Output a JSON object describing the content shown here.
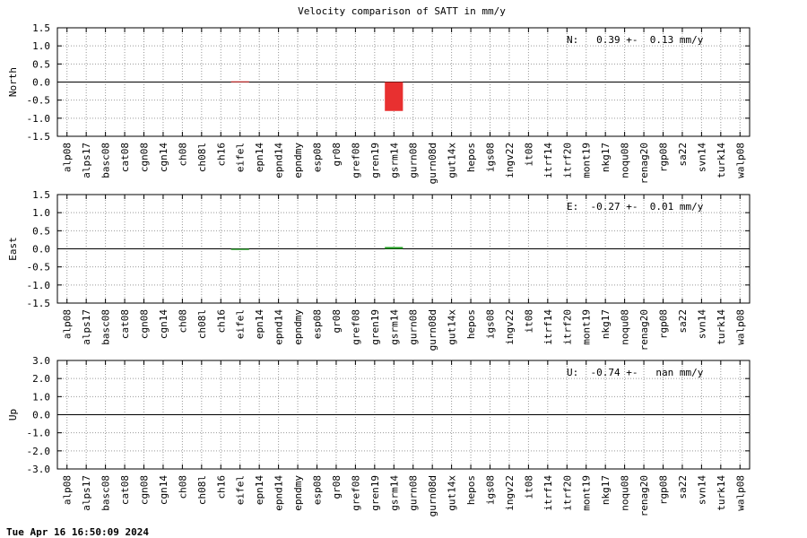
{
  "title": "Velocity comparison of SATT in mm/y",
  "timestamp": "Tue Apr 16 16:50:09 2024",
  "chart_data": [
    {
      "type": "bar",
      "ylabel": "North",
      "annotation": "N:   0.39 +-  0.13 mm/y",
      "color": "#e83030",
      "grid": true,
      "categories": [
        "alp08",
        "alps17",
        "basc08",
        "cat08",
        "cgn08",
        "cgn14",
        "ch08",
        "ch08l",
        "ch16",
        "eifel",
        "epn14",
        "epnd14",
        "epndmy",
        "esp08",
        "gr08",
        "gref08",
        "gren19",
        "gsrm14",
        "gurn08",
        "gurn08d",
        "gut14x",
        "hepos",
        "igs08",
        "ingv22",
        "it08",
        "itrf14",
        "itrf20",
        "mont19",
        "nkg17",
        "noqu08",
        "renag20",
        "rgp08",
        "sa22",
        "svn14",
        "turk14",
        "walp08"
      ],
      "values": [
        null,
        null,
        null,
        null,
        null,
        null,
        null,
        null,
        null,
        0.02,
        null,
        null,
        null,
        null,
        null,
        null,
        null,
        -0.8,
        null,
        null,
        null,
        null,
        null,
        null,
        null,
        null,
        null,
        null,
        null,
        null,
        null,
        null,
        null,
        null,
        null,
        null
      ],
      "ylim": [
        -1.5,
        1.5
      ],
      "yticks": [
        -1.5,
        {
          "value": -1,
          "label": "-1.0"
        },
        -0.5,
        {
          "value": 0,
          "label": "0.0"
        },
        0.5,
        {
          "value": 1,
          "label": "1.0"
        },
        1.5
      ]
    },
    {
      "type": "bar",
      "ylabel": "East",
      "annotation": "E:  -0.27 +-  0.01 mm/y",
      "color": "#20a020",
      "grid": true,
      "categories": [
        "alp08",
        "alps17",
        "basc08",
        "cat08",
        "cgn08",
        "cgn14",
        "ch08",
        "ch08l",
        "ch16",
        "eifel",
        "epn14",
        "epnd14",
        "epndmy",
        "esp08",
        "gr08",
        "gref08",
        "gren19",
        "gsrm14",
        "gurn08",
        "gurn08d",
        "gut14x",
        "hepos",
        "igs08",
        "ingv22",
        "it08",
        "itrf14",
        "itrf20",
        "mont19",
        "nkg17",
        "noqu08",
        "renag20",
        "rgp08",
        "sa22",
        "svn14",
        "turk14",
        "walp08"
      ],
      "values": [
        null,
        null,
        null,
        null,
        null,
        null,
        null,
        null,
        null,
        -0.03,
        null,
        null,
        null,
        null,
        null,
        null,
        null,
        0.05,
        null,
        null,
        null,
        null,
        null,
        null,
        null,
        null,
        null,
        null,
        null,
        null,
        null,
        null,
        null,
        null,
        null,
        null
      ],
      "ylim": [
        -1.5,
        1.5
      ],
      "yticks": [
        -1.5,
        {
          "value": -1,
          "label": "-1.0"
        },
        -0.5,
        {
          "value": 0,
          "label": "0.0"
        },
        0.5,
        {
          "value": 1,
          "label": "1.0"
        },
        1.5
      ]
    },
    {
      "type": "bar",
      "ylabel": "Up",
      "annotation": "U:  -0.74 +-   nan mm/y",
      "color": "#3050e0",
      "grid": true,
      "categories": [
        "alp08",
        "alps17",
        "basc08",
        "cat08",
        "cgn08",
        "cgn14",
        "ch08",
        "ch08l",
        "ch16",
        "eifel",
        "epn14",
        "epnd14",
        "epndmy",
        "esp08",
        "gr08",
        "gref08",
        "gren19",
        "gsrm14",
        "gurn08",
        "gurn08d",
        "gut14x",
        "hepos",
        "igs08",
        "ingv22",
        "it08",
        "itrf14",
        "itrf20",
        "mont19",
        "nkg17",
        "noqu08",
        "renag20",
        "rgp08",
        "sa22",
        "svn14",
        "turk14",
        "walp08"
      ],
      "values": [
        null,
        null,
        null,
        null,
        null,
        null,
        null,
        null,
        null,
        null,
        null,
        null,
        null,
        null,
        null,
        null,
        null,
        null,
        null,
        null,
        null,
        null,
        null,
        null,
        null,
        null,
        null,
        null,
        null,
        null,
        null,
        null,
        null,
        null,
        null,
        null
      ],
      "ylim": [
        -3,
        3
      ],
      "yticks": [
        {
          "value": -3,
          "label": "-3.0"
        },
        {
          "value": -2,
          "label": "-2.0"
        },
        {
          "value": -1,
          "label": "-1.0"
        },
        {
          "value": 0,
          "label": "0.0"
        },
        {
          "value": 1,
          "label": "1.0"
        },
        {
          "value": 2,
          "label": "2.0"
        },
        {
          "value": 3,
          "label": "3.0"
        }
      ]
    }
  ]
}
